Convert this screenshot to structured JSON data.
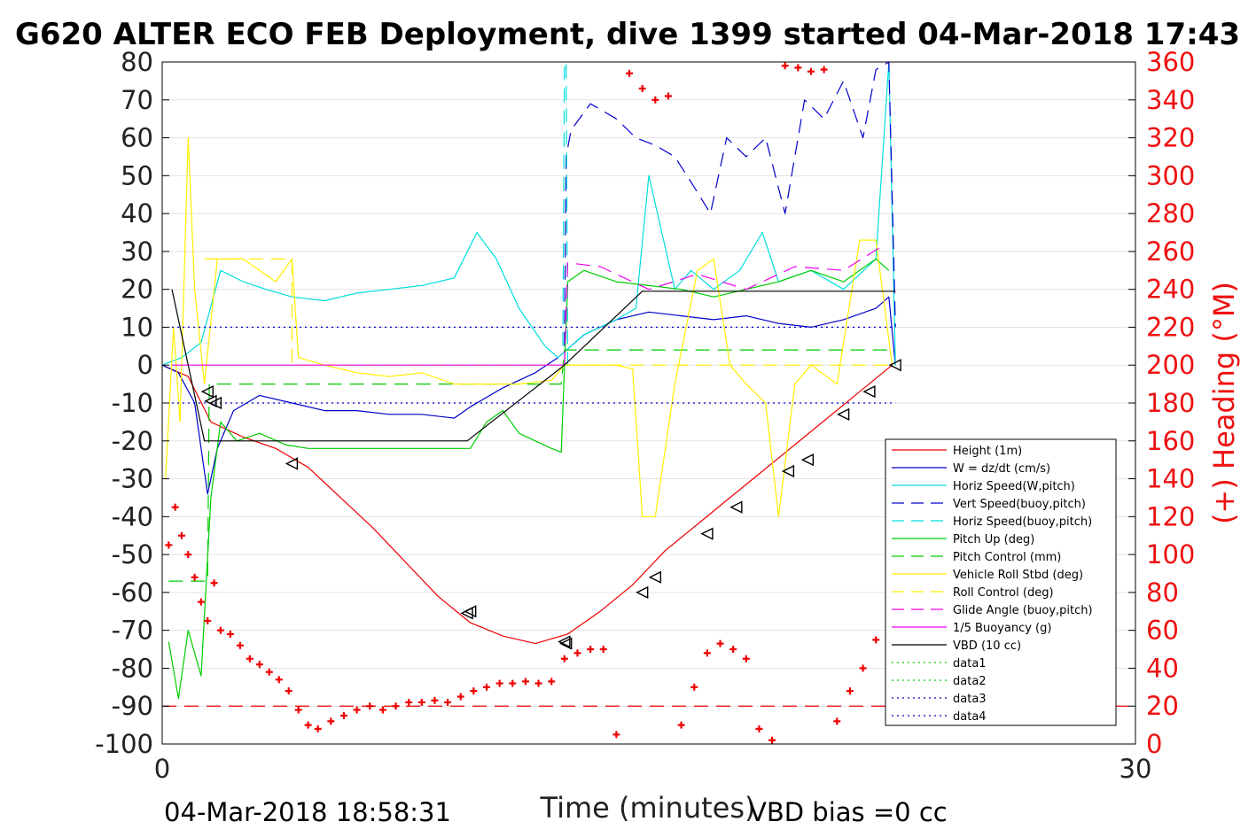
{
  "chart_data": {
    "type": "line",
    "title": "G620 ALTER ECO FEB Deployment, dive 1399 started 04-Mar-2018 17:43",
    "xlabel": "Time (minutes)",
    "ylabel_right": "(+) Heading (°M)",
    "xlim": [
      0,
      30
    ],
    "ylim": [
      -100,
      80
    ],
    "ylim_right": [
      0,
      360
    ],
    "x_ticks": [
      "0",
      "30"
    ],
    "y_ticks": [
      "80",
      "70",
      "60",
      "50",
      "40",
      "30",
      "20",
      "10",
      "0",
      "-10",
      "-20",
      "-30",
      "-40",
      "-50",
      "-60",
      "-70",
      "-80",
      "-90",
      "-100"
    ],
    "y_ticks_right": [
      "360",
      "340",
      "320",
      "300",
      "280",
      "260",
      "240",
      "220",
      "200",
      "180",
      "160",
      "140",
      "120",
      "100",
      "80",
      "60",
      "40",
      "20",
      "0"
    ],
    "grid": "horizontal",
    "legend_position": "lower-right",
    "footer_left": "04-Mar-2018 18:58:31",
    "footer_right": "VBD bias =0 cc",
    "series": [
      {
        "name": "Height (1m)",
        "color": "#ee0000",
        "style": "solid",
        "x": [
          0.0,
          0.8,
          1.5,
          2.5,
          3.5,
          4.5,
          5.5,
          6.5,
          7.5,
          8.5,
          9.5,
          10.5,
          11.5,
          12.5,
          13.5,
          14.5,
          15.5,
          16.5,
          17.5,
          18.5,
          19.5,
          20.5,
          21.5,
          22.5
        ],
        "y": [
          0,
          -3,
          -15,
          -19,
          -22,
          -27,
          -35,
          -43,
          -52,
          -61,
          -68,
          -71.5,
          -73.5,
          -71,
          -65,
          -58,
          -49,
          -42,
          -35,
          -28,
          -21,
          -14,
          -7,
          0
        ]
      },
      {
        "name": "W = dz/dt (cm/s)",
        "color": "#0000cc",
        "style": "solid",
        "x": [
          0.0,
          0.5,
          1.0,
          1.4,
          1.7,
          2.2,
          3.0,
          4.0,
          5.0,
          6.0,
          7.0,
          8.0,
          9.0,
          9.5,
          10.5,
          11.5,
          12.2,
          13.0,
          14.0,
          15.0,
          16.0,
          17.0,
          18.0,
          19.0,
          20.0,
          21.0,
          22.0,
          22.4,
          22.6
        ],
        "y": [
          0,
          -2,
          -10,
          -34,
          -22,
          -12,
          -8,
          -10,
          -12,
          -12,
          -13,
          -13,
          -14,
          -11,
          -6,
          -2,
          2,
          8,
          12,
          14,
          13,
          12,
          13,
          11,
          10,
          12,
          15,
          18,
          0
        ]
      },
      {
        "name": "Horiz Speed(W,pitch)",
        "color": "#00dddd",
        "style": "solid",
        "x": [
          0.0,
          0.6,
          1.2,
          1.8,
          2.5,
          3.2,
          4.0,
          5.0,
          6.0,
          7.0,
          8.0,
          9.0,
          9.7,
          10.3,
          11.0,
          11.8,
          12.2,
          13.0,
          14.0,
          14.6,
          15.0,
          15.8,
          16.3,
          17.0,
          17.8,
          18.5,
          19.0,
          20.0,
          21.0,
          22.0,
          22.4,
          22.6
        ],
        "y": [
          0,
          2,
          6,
          25,
          22,
          20,
          18,
          17,
          19,
          20,
          21,
          23,
          35,
          28,
          15,
          5,
          2,
          8,
          12,
          15,
          50,
          20,
          25,
          20,
          25,
          35,
          22,
          25,
          20,
          28,
          80,
          0
        ]
      },
      {
        "name": "Vert Speed(buoy,pitch)",
        "color": "#0000cc",
        "style": "dashed",
        "x": [
          12.4,
          12.45,
          12.6,
          13.2,
          14.0,
          14.6,
          15.2,
          15.8,
          16.4,
          16.9,
          17.4,
          18.0,
          18.6,
          19.2,
          19.8,
          20.4,
          21.0,
          21.6,
          22.0,
          22.4,
          22.6
        ],
        "y": [
          5,
          55,
          62,
          69,
          65,
          60,
          58,
          55,
          47,
          40,
          60,
          55,
          60,
          40,
          70,
          65,
          75,
          60,
          78,
          80,
          10
        ]
      },
      {
        "name": "Horiz Speed(buoy,pitch)",
        "color": "#00dddd",
        "style": "dashed",
        "x": [
          12.35,
          12.4,
          12.45,
          12.5
        ],
        "y": [
          5,
          80,
          80,
          0
        ]
      },
      {
        "name": "Pitch Up (deg)",
        "color": "#00cc00",
        "style": "solid",
        "x": [
          0.2,
          0.5,
          0.8,
          1.2,
          1.5,
          1.8,
          2.3,
          3.0,
          3.8,
          4.5,
          5.5,
          6.5,
          7.5,
          8.5,
          9.5,
          10.0,
          10.5,
          11.0,
          12.0,
          12.3,
          12.5,
          13.0,
          14.0,
          15.0,
          16.0,
          17.0,
          18.0,
          19.0,
          20.0,
          21.0,
          22.0,
          22.4
        ],
        "y": [
          -73,
          -88,
          -70,
          -82,
          -35,
          -15,
          -20,
          -18,
          -21,
          -22,
          -22,
          -22,
          -22,
          -22,
          -22,
          -15,
          -12,
          -18,
          -22,
          -23,
          22,
          25,
          22,
          21,
          20,
          18,
          20,
          22,
          25,
          22,
          28,
          25
        ]
      },
      {
        "name": "Pitch Control (mm)",
        "color": "#00cc00",
        "style": "dashed",
        "x": [
          0.2,
          1.4,
          1.45,
          12.3,
          12.4,
          22.6
        ],
        "y": [
          -57,
          -57,
          -5,
          -5,
          4,
          4
        ]
      },
      {
        "name": "Vehicle Roll Stbd (deg)",
        "color": "#ffee00",
        "style": "solid",
        "x": [
          0.1,
          0.35,
          0.55,
          0.8,
          1.0,
          1.3,
          1.7,
          2.5,
          3.5,
          4.0,
          4.2,
          5.0,
          6.0,
          7.0,
          8.0,
          9.0,
          10.0,
          11.0,
          12.0,
          12.4,
          13.0,
          14.0,
          14.5,
          14.8,
          15.2,
          15.8,
          16.5,
          17.0,
          17.5,
          18.0,
          18.6,
          19.0,
          19.5,
          20.0,
          20.8,
          21.5,
          22.0,
          22.5
        ],
        "y": [
          -30,
          10,
          -15,
          60,
          20,
          -5,
          28,
          28,
          22,
          28,
          2,
          0,
          -2,
          -3,
          -2,
          -5,
          -5,
          -5,
          -4,
          0,
          0,
          0,
          -1,
          -40,
          -40,
          -5,
          25,
          28,
          0,
          -5,
          -10,
          -40,
          -5,
          0,
          -5,
          33,
          33,
          0
        ]
      },
      {
        "name": "Roll Control (deg)",
        "color": "#ffee00",
        "style": "dashed",
        "x": [
          1.3,
          4.0,
          4.0,
          12.4,
          12.5,
          22.6
        ],
        "y": [
          28,
          28,
          0,
          0,
          0,
          0
        ]
      },
      {
        "name": "Glide Angle (buoy,pitch)",
        "color": "#ee00ee",
        "style": "dashed",
        "x": [
          12.4,
          12.5,
          13.5,
          15.0,
          16.5,
          18.0,
          19.5,
          21.0,
          22.3
        ],
        "y": [
          0,
          27,
          26,
          20,
          24,
          20,
          26,
          25,
          32
        ]
      },
      {
        "name": "1/5 Buoyancy (g)",
        "color": "#ee00ee",
        "style": "solid",
        "x": [
          0.3,
          12.4
        ],
        "y": [
          0,
          0
        ]
      },
      {
        "name": "VBD (10 cc)",
        "color": "#000000",
        "style": "solid",
        "x": [
          0.3,
          1.3,
          9.4,
          12.4,
          14.8,
          22.6
        ],
        "y": [
          20,
          -20,
          -20,
          0,
          19.5,
          19.5
        ]
      },
      {
        "name": "data1",
        "color": "#00cc00",
        "style": "dotted",
        "x": [],
        "y": []
      },
      {
        "name": "data2",
        "color": "#00cc00",
        "style": "dotted",
        "x": [],
        "y": []
      },
      {
        "name": "data3",
        "color": "#0000cc",
        "style": "dotted",
        "x": [
          0.3,
          22.6
        ],
        "y": [
          10,
          10
        ]
      },
      {
        "name": "data4",
        "color": "#0000cc",
        "style": "dotted",
        "x": [
          0.3,
          22.6
        ],
        "y": [
          -10,
          -10
        ]
      }
    ],
    "reference_lines": [
      {
        "color": "#ee0000",
        "style": "dashed",
        "y": -90
      }
    ],
    "heading_markers": {
      "color": "#ee0000",
      "symbol": "+",
      "x": [
        0.2,
        0.4,
        0.6,
        0.8,
        1.0,
        1.2,
        1.4,
        1.6,
        1.8,
        2.1,
        2.4,
        2.7,
        3.0,
        3.3,
        3.6,
        3.9,
        4.2,
        4.5,
        4.8,
        5.2,
        5.6,
        6.0,
        6.4,
        6.8,
        7.2,
        7.6,
        8.0,
        8.4,
        8.8,
        9.2,
        9.6,
        10.0,
        10.4,
        10.8,
        11.2,
        11.6,
        12.0,
        12.4,
        12.8,
        13.2,
        13.6,
        14.0,
        14.4,
        14.8,
        15.2,
        15.6,
        16.0,
        16.4,
        16.8,
        17.2,
        17.6,
        18.0,
        18.4,
        18.8,
        19.2,
        19.6,
        20.0,
        20.4,
        20.8,
        21.2,
        21.6,
        22.0,
        22.4
      ],
      "y": [
        105,
        125,
        110,
        100,
        88,
        75,
        65,
        85,
        60,
        58,
        52,
        45,
        42,
        38,
        34,
        28,
        18,
        10,
        8,
        12,
        15,
        18,
        20,
        18,
        20,
        22,
        22,
        23,
        22,
        25,
        28,
        30,
        32,
        32,
        33,
        32,
        33,
        45,
        48,
        50,
        50,
        5,
        354,
        346,
        340,
        342,
        10,
        30,
        48,
        53,
        50,
        45,
        8,
        2,
        358,
        357,
        355,
        356,
        12,
        28,
        40,
        55,
        62
      ]
    },
    "triangle_markers": {
      "color": "#000000",
      "x": [
        1.4,
        1.5,
        1.65,
        4.0,
        9.4,
        9.5,
        12.4,
        12.45,
        14.8,
        15.2,
        16.8,
        17.7,
        19.3,
        19.9,
        21.0,
        21.8,
        22.6
      ],
      "y": [
        -7,
        -9.5,
        -10,
        -26,
        -65.5,
        -65,
        -73,
        -73.5,
        -60,
        -56,
        -44.5,
        -37.5,
        -28,
        -25,
        -13,
        -7,
        0
      ]
    }
  }
}
